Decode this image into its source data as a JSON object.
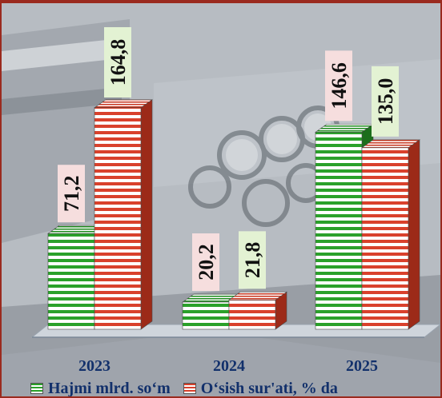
{
  "chart_data": {
    "type": "bar",
    "categories": [
      "2023",
      "2024",
      "2025"
    ],
    "series": [
      {
        "name": "Hajmi mlrd. so‘m",
        "values": [
          71.2,
          20.2,
          146.6
        ],
        "labels": [
          "71,2",
          "20,2",
          "146,6"
        ],
        "color": "#2aa12a"
      },
      {
        "name": "O‘sish sur'ati, % da",
        "values": [
          164.8,
          21.8,
          135.0
        ],
        "labels": [
          "164,8",
          "21,8",
          "135,0"
        ],
        "color": "#d9412c"
      }
    ],
    "ylim": [
      0,
      170
    ],
    "label_bg": {
      "green": "#e3f2d3",
      "pink": "#f6dede"
    },
    "legend_position": "bottom"
  }
}
